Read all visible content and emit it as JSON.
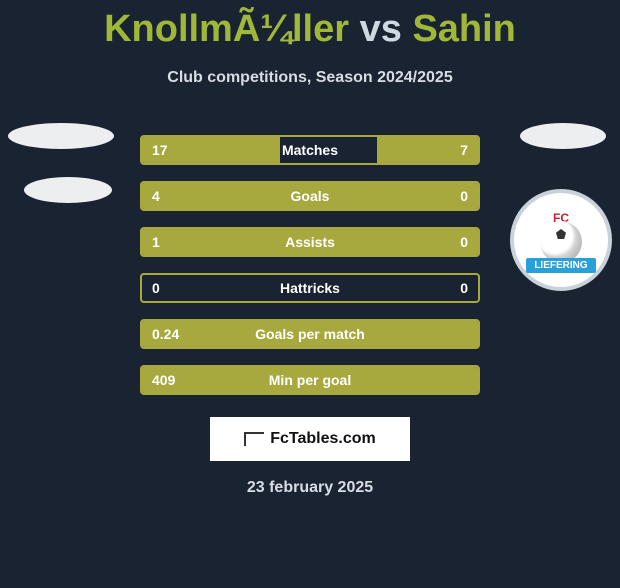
{
  "header": {
    "player1": "KnollmÃ¼ller",
    "vs": "vs",
    "player2": "Sahin",
    "subtitle": "Club competitions, Season 2024/2025",
    "title_color": "#a0b838",
    "vs_color": "#cfd8e0"
  },
  "logos": {
    "left_ovals": 2,
    "right_text_top": "FC",
    "right_banner": "LIEFERING",
    "right_banner_bg": "#2aa0d8",
    "right_border": "#c9d1da"
  },
  "bars": {
    "border_color": "#a7a93f",
    "fill_color": "#a7a93f",
    "bg_color": "#1a2332",
    "text_color": "#ffffff",
    "rows": [
      {
        "label": "Matches",
        "left_val": "17",
        "right_val": "7",
        "left_pct": 41,
        "right_pct": 30
      },
      {
        "label": "Goals",
        "left_val": "4",
        "right_val": "0",
        "left_pct": 100,
        "right_pct": 0
      },
      {
        "label": "Assists",
        "left_val": "1",
        "right_val": "0",
        "left_pct": 100,
        "right_pct": 0
      },
      {
        "label": "Hattricks",
        "left_val": "0",
        "right_val": "0",
        "left_pct": 0,
        "right_pct": 0
      },
      {
        "label": "Goals per match",
        "left_val": "0.24",
        "right_val": "",
        "left_pct": 100,
        "right_pct": 0
      },
      {
        "label": "Min per goal",
        "left_val": "409",
        "right_val": "",
        "left_pct": 100,
        "right_pct": 0
      }
    ]
  },
  "footer": {
    "brand": "FcTables.com",
    "date": "23 february 2025"
  }
}
